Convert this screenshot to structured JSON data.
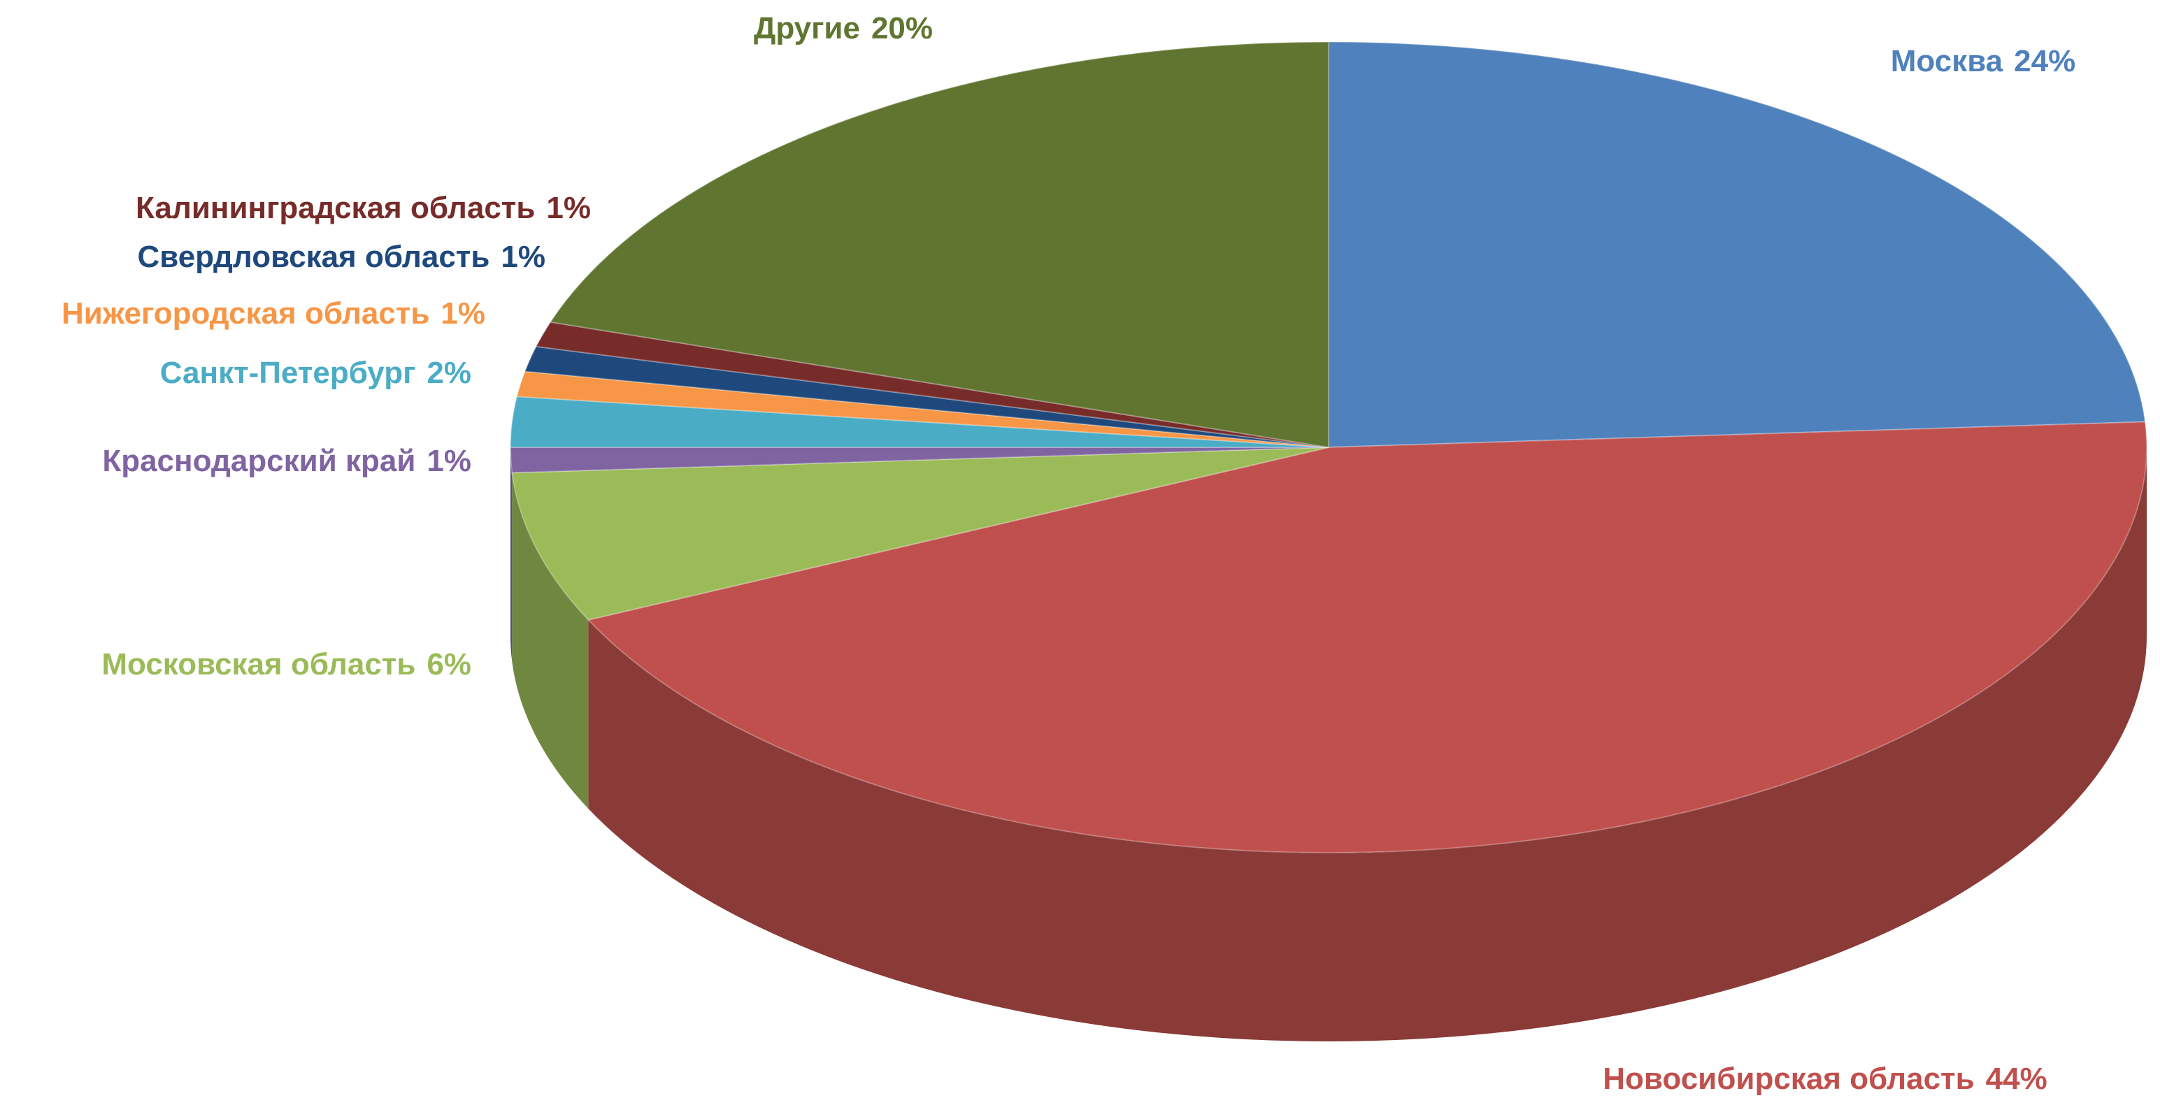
{
  "chart_data": {
    "type": "pie3d",
    "categories": [
      "Москва",
      "Новосибирская область",
      "Московская область",
      "Краснодарский край",
      "Санкт-Петербург",
      "Нижегородская область",
      "Свердловская область",
      "Калининградская область",
      "Другие"
    ],
    "values": [
      24,
      44,
      6,
      1,
      2,
      1,
      1,
      1,
      20
    ],
    "value_labels": [
      "24%",
      "44%",
      "6%",
      "1%",
      "2%",
      "1%",
      "1%",
      "1%",
      "20%"
    ],
    "colors": [
      "#4f81bd",
      "#c0504d",
      "#9bbb59",
      "#8064a2",
      "#4bacc6",
      "#f79646",
      "#1f497d",
      "#772c2a",
      "#5f7530"
    ]
  }
}
